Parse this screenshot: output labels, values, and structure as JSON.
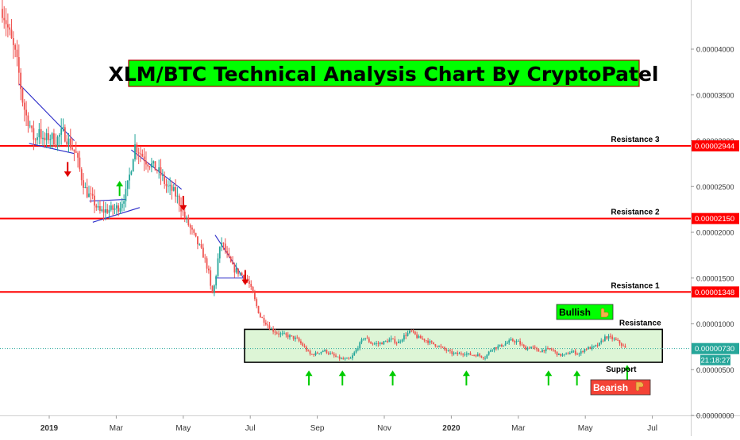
{
  "chart_data": {
    "type": "candlestick",
    "title": "XLM/BTC Technical Analysis Chart By CryptoPatel",
    "y_axis": {
      "ticks": [
        "0.00004000",
        "0.00003500",
        "0.00003000",
        "0.00002500",
        "0.00002000",
        "0.00001500",
        "0.00001000",
        "0.00000500",
        "0.00000000"
      ],
      "tick_values": [
        4e-05,
        3.5e-05,
        3e-05,
        2.5e-05,
        2e-05,
        1.5e-05,
        1e-05,
        5e-06,
        0
      ],
      "range": [
        -1e-07,
        4.5e-05
      ],
      "position": "right"
    },
    "x_axis": {
      "ticks": [
        "2019",
        "Mar",
        "May",
        "Jul",
        "Sep",
        "Nov",
        "2020",
        "Mar",
        "May",
        "Jul"
      ],
      "tick_months": [
        0,
        2,
        4,
        6,
        8,
        10,
        12,
        14,
        16,
        18
      ]
    },
    "levels": [
      {
        "name": "Resistance 3",
        "value": 2.944e-05,
        "tag": "0.00002944"
      },
      {
        "name": "Resistance 2",
        "value": 2.15e-05,
        "tag": "0.00002150"
      },
      {
        "name": "Resistance 1",
        "value": 1.348e-05,
        "tag": "0.00001348"
      }
    ],
    "range_box": {
      "top": 9.4e-06,
      "bottom": 5.8e-06,
      "start_month": 5.83,
      "end_month": 18.3,
      "top_label": "Resistance",
      "bottom_label": "Support"
    },
    "current_price": {
      "value": 7.3e-06,
      "tag": "0.00000730",
      "countdown": "21:18:27"
    },
    "badges": {
      "bullish": "Bullish",
      "bearish": "Bearish"
    },
    "price_path": [
      [
        -1.4,
        4.44e-05
      ],
      [
        -1.3,
        4.32e-05
      ],
      [
        -1.2,
        4.18e-05
      ],
      [
        -1.1,
        4.05e-05
      ],
      [
        -1.0,
        3.92e-05
      ],
      [
        -0.9,
        3.72e-05
      ],
      [
        -0.8,
        3.45e-05
      ],
      [
        -0.7,
        3.28e-05
      ],
      [
        -0.6,
        3.2e-05
      ],
      [
        -0.5,
        3.05e-05
      ],
      [
        -0.4,
        3e-05
      ],
      [
        -0.3,
        3.15e-05
      ],
      [
        -0.2,
        2.98e-05
      ],
      [
        0.0,
        3.05e-05
      ],
      [
        0.2,
        3e-05
      ],
      [
        0.4,
        3.1e-05
      ],
      [
        0.6,
        2.98e-05
      ],
      [
        0.8,
        2.85e-05
      ],
      [
        0.95,
        2.62e-05
      ],
      [
        1.1,
        2.44e-05
      ],
      [
        1.3,
        2.35e-05
      ],
      [
        1.5,
        2.22e-05
      ],
      [
        1.7,
        2.24e-05
      ],
      [
        1.9,
        2.25e-05
      ],
      [
        2.1,
        2.28e-05
      ],
      [
        2.3,
        2.44e-05
      ],
      [
        2.45,
        2.72e-05
      ],
      [
        2.55,
        2.95e-05
      ],
      [
        2.7,
        2.88e-05
      ],
      [
        2.9,
        2.78e-05
      ],
      [
        3.1,
        2.72e-05
      ],
      [
        3.3,
        2.65e-05
      ],
      [
        3.5,
        2.5e-05
      ],
      [
        3.7,
        2.45e-05
      ],
      [
        3.85,
        2.36e-05
      ],
      [
        4.0,
        2.2e-05
      ],
      [
        4.2,
        2.05e-05
      ],
      [
        4.4,
        1.9e-05
      ],
      [
        4.6,
        1.75e-05
      ],
      [
        4.75,
        1.58e-05
      ],
      [
        4.85,
        1.3e-05
      ],
      [
        4.95,
        1.45e-05
      ],
      [
        5.05,
        1.75e-05
      ],
      [
        5.15,
        1.9e-05
      ],
      [
        5.3,
        1.75e-05
      ],
      [
        5.5,
        1.6e-05
      ],
      [
        5.7,
        1.55e-05
      ],
      [
        5.85,
        1.5e-05
      ],
      [
        5.95,
        1.45e-05
      ],
      [
        6.1,
        1.3e-05
      ],
      [
        6.2,
        1.18e-05
      ],
      [
        6.3,
        1.08e-05
      ],
      [
        6.45,
        1.02e-05
      ],
      [
        6.6,
        9.5e-06
      ],
      [
        6.8,
        9e-06
      ],
      [
        7.0,
        8.8e-06
      ],
      [
        7.2,
        8.6e-06
      ],
      [
        7.4,
        8.3e-06
      ],
      [
        7.6,
        7.5e-06
      ],
      [
        7.8,
        6.6e-06
      ],
      [
        8.0,
        6.8e-06
      ],
      [
        8.2,
        7.1e-06
      ],
      [
        8.4,
        6.7e-06
      ],
      [
        8.6,
        6.3e-06
      ],
      [
        8.8,
        6.1e-06
      ],
      [
        9.0,
        6.2e-06
      ],
      [
        9.2,
        7.4e-06
      ],
      [
        9.4,
        8.6e-06
      ],
      [
        9.6,
        7.9e-06
      ],
      [
        9.8,
        7.8e-06
      ],
      [
        10.0,
        8e-06
      ],
      [
        10.2,
        8.3e-06
      ],
      [
        10.4,
        7.9e-06
      ],
      [
        10.6,
        8.7e-06
      ],
      [
        10.8,
        9.2e-06
      ],
      [
        11.0,
        8.5e-06
      ],
      [
        11.2,
        8.3e-06
      ],
      [
        11.4,
        7.9e-06
      ],
      [
        11.6,
        7.6e-06
      ],
      [
        11.8,
        7.2e-06
      ],
      [
        12.0,
        6.8e-06
      ],
      [
        12.2,
        6.7e-06
      ],
      [
        12.4,
        6.8e-06
      ],
      [
        12.6,
        6.6e-06
      ],
      [
        12.8,
        6.6e-06
      ],
      [
        13.0,
        6.3e-06
      ],
      [
        13.2,
        7.3e-06
      ],
      [
        13.4,
        7.5e-06
      ],
      [
        13.6,
        7.8e-06
      ],
      [
        13.8,
        8.2e-06
      ],
      [
        14.0,
        8e-06
      ],
      [
        14.2,
        7.3e-06
      ],
      [
        14.4,
        7.5e-06
      ],
      [
        14.6,
        7e-06
      ],
      [
        14.8,
        7.2e-06
      ],
      [
        15.0,
        7.2e-06
      ],
      [
        15.2,
        6.6e-06
      ],
      [
        15.4,
        6.6e-06
      ],
      [
        15.6,
        7e-06
      ],
      [
        15.8,
        6.7e-06
      ],
      [
        16.0,
        7.3e-06
      ],
      [
        16.2,
        7.4e-06
      ],
      [
        16.4,
        7.7e-06
      ],
      [
        16.6,
        8.6e-06
      ],
      [
        16.8,
        8.4e-06
      ],
      [
        17.0,
        8e-06
      ],
      [
        17.2,
        7.3e-06
      ]
    ],
    "patterns": [
      [
        [
          -0.9,
          3.62e-05
        ],
        [
          0.75,
          3e-05
        ]
      ],
      [
        [
          -0.6,
          2.97e-05
        ],
        [
          0.75,
          2.86e-05
        ]
      ],
      [
        [
          1.2,
          2.34e-05
        ],
        [
          2.3,
          2.36e-05
        ]
      ],
      [
        [
          1.3,
          2.11e-05
        ],
        [
          2.7,
          2.27e-05
        ]
      ],
      [
        [
          2.45,
          2.9e-05
        ],
        [
          3.95,
          2.47e-05
        ]
      ],
      [
        [
          4.95,
          1.97e-05
        ],
        [
          5.8,
          1.5e-05
        ]
      ],
      [
        [
          4.95,
          1.5e-05
        ],
        [
          5.8,
          1.5e-05
        ]
      ]
    ],
    "markers": [
      {
        "dir": "down",
        "color": "red",
        "month": 0.55,
        "price": 2.69e-05
      },
      {
        "dir": "up",
        "color": "green",
        "month": 2.1,
        "price": 2.57e-05
      },
      {
        "dir": "down",
        "color": "red",
        "month": 4.0,
        "price": 2.32e-05
      },
      {
        "dir": "down",
        "color": "red",
        "month": 5.85,
        "price": 1.51e-05
      },
      {
        "dir": "up",
        "color": "green",
        "month": 7.75,
        "price": 5e-06
      },
      {
        "dir": "up",
        "color": "green",
        "month": 8.75,
        "price": 5e-06
      },
      {
        "dir": "up",
        "color": "green",
        "month": 10.25,
        "price": 5e-06
      },
      {
        "dir": "up",
        "color": "green",
        "month": 12.45,
        "price": 5e-06
      },
      {
        "dir": "up",
        "color": "green",
        "month": 14.9,
        "price": 5e-06
      },
      {
        "dir": "up",
        "color": "green",
        "month": 15.75,
        "price": 5e-06
      },
      {
        "dir": "up",
        "color": "green",
        "month": 17.25,
        "price": 5.6e-06
      }
    ],
    "colors": {
      "up": "#26a69a",
      "down": "#ef5350",
      "resistance": "#ff0000",
      "pattern": "#2a2ac8",
      "arrow_up": "#00cc00",
      "arrow_down": "#e00000",
      "box_fill": "#ddf5d6",
      "title_bg": "#00ff00",
      "tag_red": "#ff0000",
      "tag_teal": "#26a69a",
      "bearish_bg": "#f44336",
      "bullish_bg": "#00ff00"
    }
  }
}
